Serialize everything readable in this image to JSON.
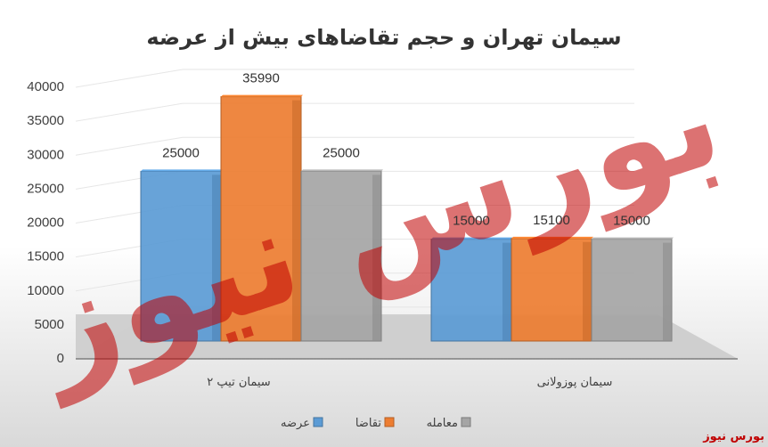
{
  "chart_data": {
    "type": "bar",
    "title": "سیمان تهران و حجم تقاضاهای بیش از عرضه",
    "categories": [
      "سیمان تیپ ۲",
      "سیمان پوزولانی"
    ],
    "series": [
      {
        "name": "عرضه",
        "values": [
          25000,
          15000
        ],
        "color": "#5b9bd5"
      },
      {
        "name": "تقاضا",
        "values": [
          35990,
          15100
        ],
        "color": "#ed7d31"
      },
      {
        "name": "معامله",
        "values": [
          25000,
          15000
        ],
        "color": "#a5a5a5"
      }
    ],
    "ylim": [
      0,
      40000
    ],
    "yticks": [
      0,
      5000,
      10000,
      15000,
      20000,
      25000,
      30000,
      35000,
      40000
    ],
    "grid": true,
    "legend_position": "bottom",
    "style": "3d-clustered-column"
  },
  "watermark": {
    "text": "بورس نیوز",
    "color": "#c00000"
  },
  "brand": {
    "text": "بورس نیوز"
  }
}
